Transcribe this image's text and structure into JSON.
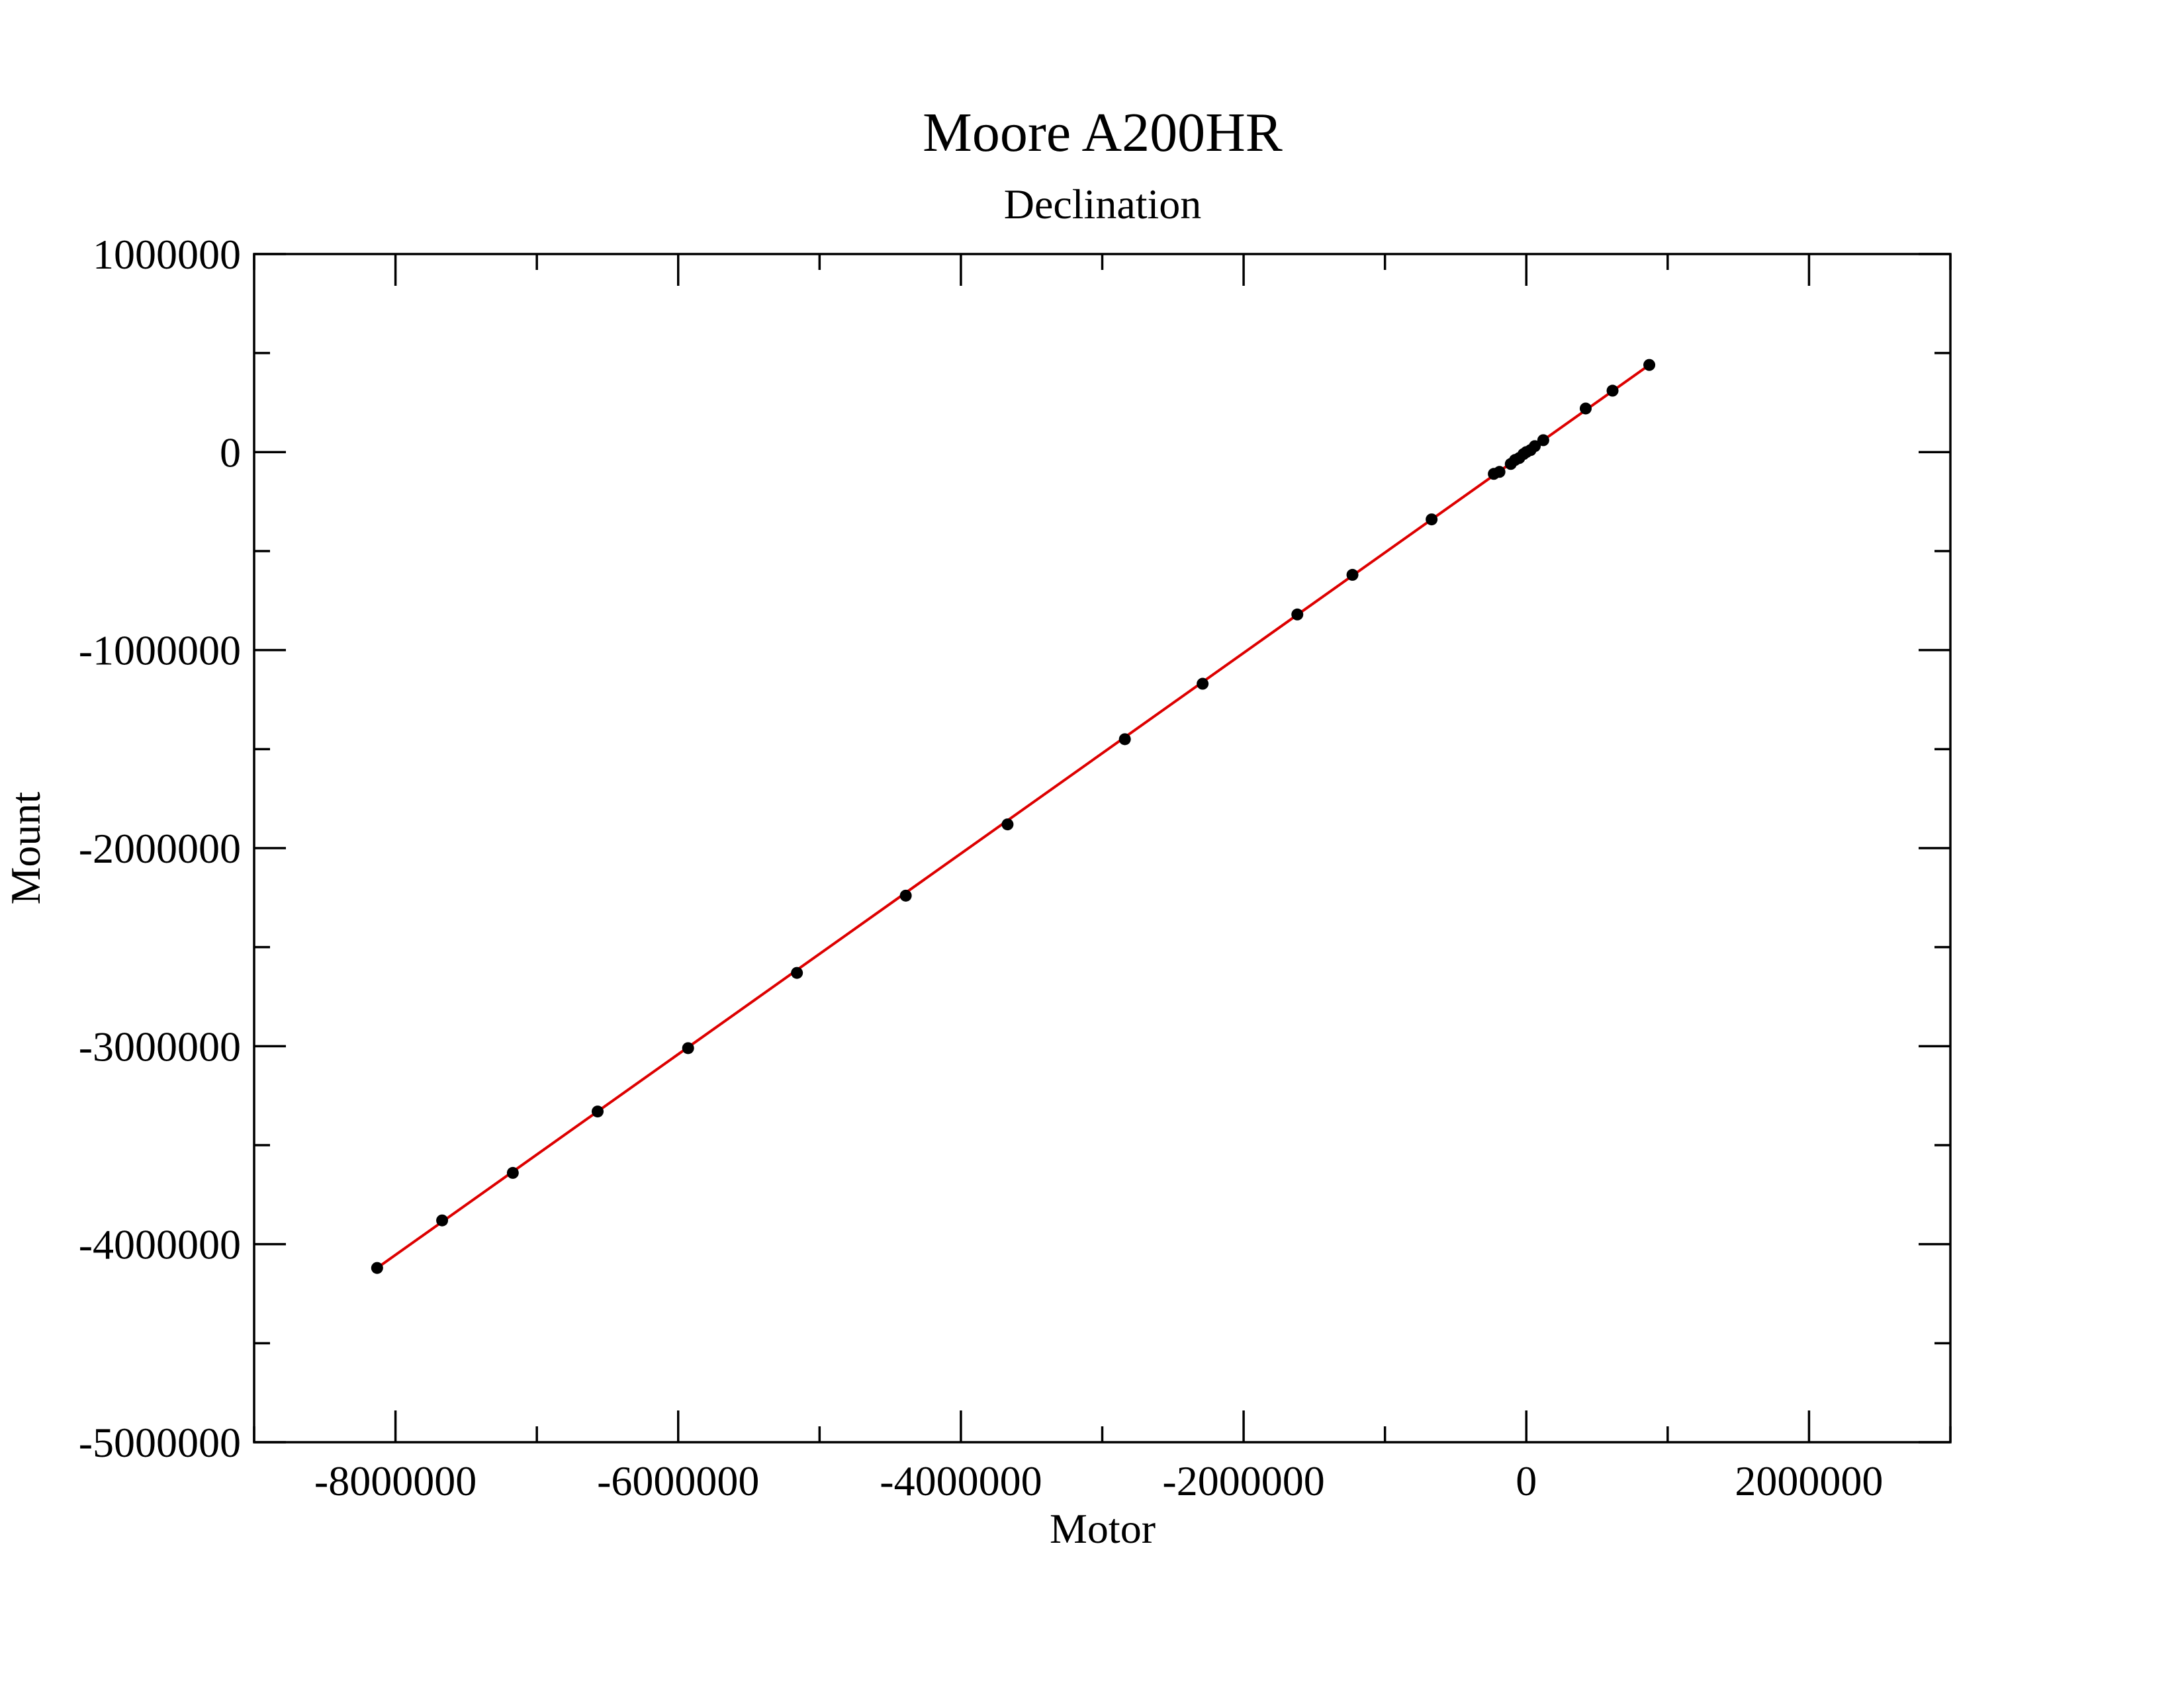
{
  "chart_data": {
    "type": "scatter",
    "title": "Moore A200HR",
    "subtitle": "Declination",
    "xlabel": "Motor",
    "ylabel": "Mount",
    "xlim": [
      -9000000,
      3000000
    ],
    "ylim": [
      -5000000,
      1000000
    ],
    "x_major_ticks": [
      -8000000,
      -6000000,
      -4000000,
      -2000000,
      0,
      2000000
    ],
    "x_tick_labels": [
      "-8000000",
      "-6000000",
      "-4000000",
      "-2000000",
      "0",
      "2000000"
    ],
    "x_minor_ticks": [
      -9000000,
      -7000000,
      -5000000,
      -3000000,
      -1000000,
      1000000,
      3000000
    ],
    "y_major_ticks": [
      -5000000,
      -4000000,
      -3000000,
      -2000000,
      -1000000,
      0,
      1000000
    ],
    "y_tick_labels": [
      "-5000000",
      "-4000000",
      "-3000000",
      "-2000000",
      "-1000000",
      "0",
      "1000000"
    ],
    "y_minor_ticks": [
      -4500000,
      -3500000,
      -2500000,
      -1500000,
      -500000,
      500000
    ],
    "grid": false,
    "series": [
      {
        "type": "scatter",
        "color": "#000000",
        "x": [
          -8130000,
          -7670000,
          -7170000,
          -6570000,
          -5930000,
          -5160000,
          -4390000,
          -3670000,
          -2840000,
          -2290000,
          -1620000,
          -1230000,
          -670000,
          -230000,
          -190000,
          -110000,
          -80000,
          -50000,
          -20000,
          0,
          30000,
          60000,
          120000,
          420000,
          610000,
          870000
        ],
        "y": [
          -4120000,
          -3880000,
          -3640000,
          -3330000,
          -3010000,
          -2630000,
          -2240000,
          -1880000,
          -1450000,
          -1170000,
          -820000,
          -620000,
          -340000,
          -110000,
          -100000,
          -60000,
          -40000,
          -30000,
          -10000,
          0,
          10000,
          30000,
          60000,
          220000,
          310000,
          440000
        ]
      },
      {
        "type": "line",
        "color": "#dd0000",
        "x": [
          -8130000,
          870000
        ],
        "y": [
          -4120000,
          440000
        ]
      }
    ]
  }
}
